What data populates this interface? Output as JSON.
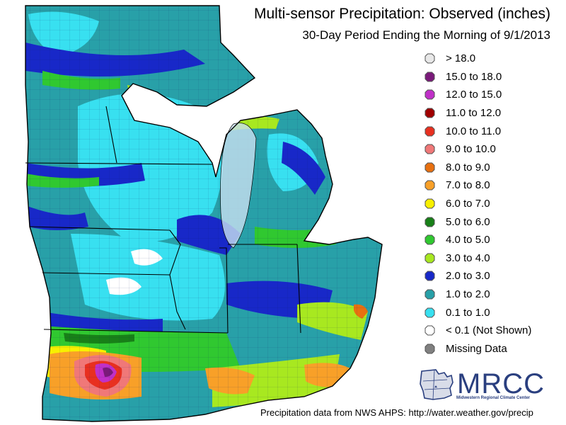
{
  "title": "Multi-sensor Precipitation:  Observed (inches)",
  "subtitle": "30-Day Period Ending the Morning of 9/1/2013",
  "legend": [
    {
      "label": "> 18.0",
      "color": "#e8e8e8"
    },
    {
      "label": "15.0 to 18.0",
      "color": "#7a1a7a"
    },
    {
      "label": "12.0 to 15.0",
      "color": "#c030c8"
    },
    {
      "label": "11.0 to 12.0",
      "color": "#a00000"
    },
    {
      "label": "10.0 to 11.0",
      "color": "#e83020"
    },
    {
      "label": "9.0 to 10.0",
      "color": "#f07878"
    },
    {
      "label": "8.0 to 9.0",
      "color": "#e87010"
    },
    {
      "label": "7.0 to 8.0",
      "color": "#f8a028"
    },
    {
      "label": "6.0 to 7.0",
      "color": "#f8f000"
    },
    {
      "label": "5.0 to 6.0",
      "color": "#188018"
    },
    {
      "label": "4.0 to 5.0",
      "color": "#30c830"
    },
    {
      "label": "3.0 to 4.0",
      "color": "#a8e820"
    },
    {
      "label": "2.0 to 3.0",
      "color": "#1828c8"
    },
    {
      "label": "1.0 to 2.0",
      "color": "#28a0a8"
    },
    {
      "label": "0.1 to 1.0",
      "color": "#38e0f0"
    },
    {
      "label": "< 0.1 (Not Shown)",
      "color": "#ffffff"
    },
    {
      "label": "Missing Data",
      "color": "#808080"
    }
  ],
  "logo": {
    "name": "MRCC",
    "subtitle": "Midwestern Regional Climate Center"
  },
  "credit": "Precipitation data from NWS AHPS: http://water.weather.gov/precip"
}
